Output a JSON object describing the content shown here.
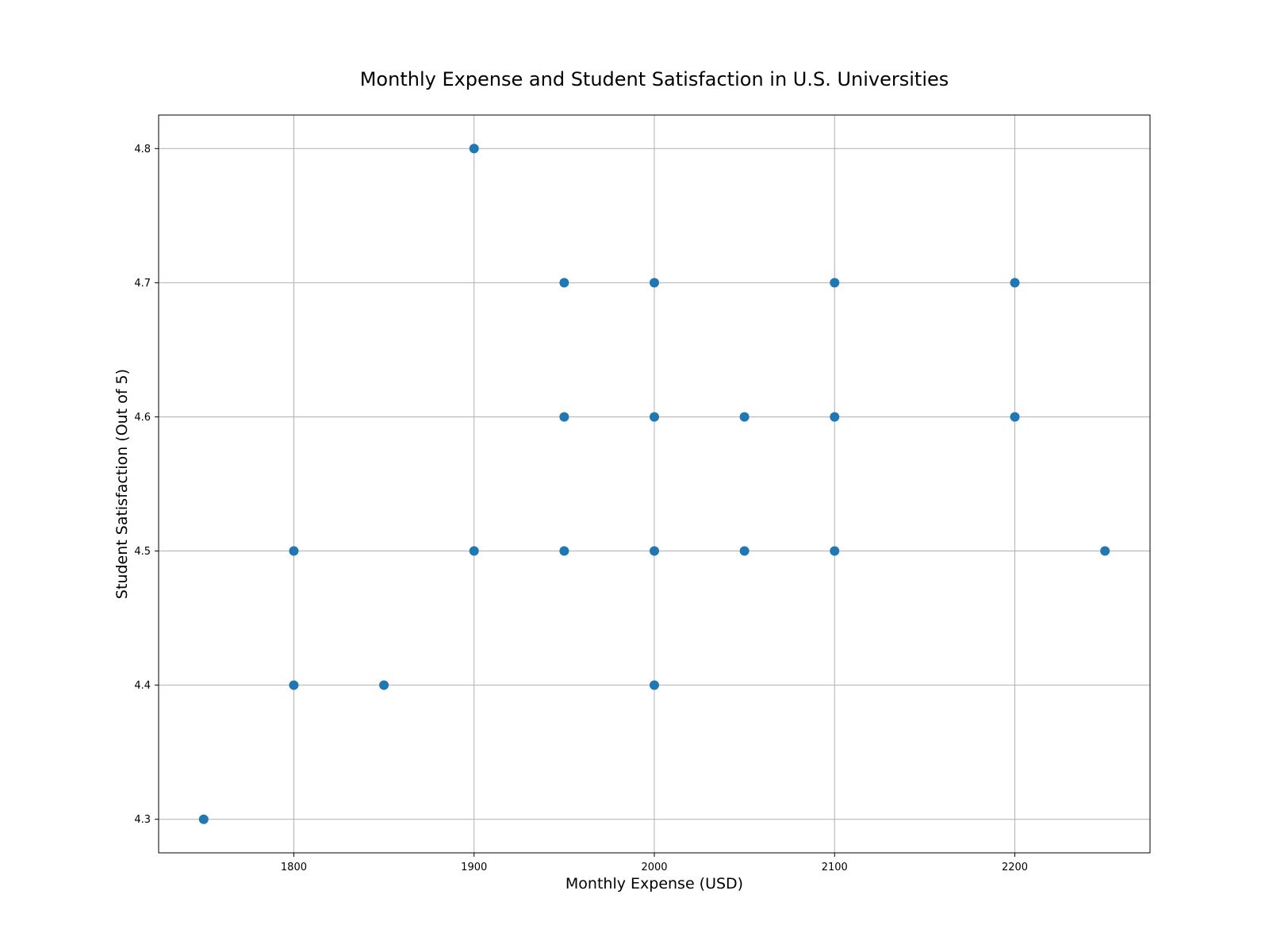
{
  "chart_data": {
    "type": "scatter",
    "title": "Monthly Expense and Student Satisfaction in U.S. Universities",
    "xlabel": "Monthly Expense (USD)",
    "ylabel": "Student Satisfaction (Out of 5)",
    "xlim": [
      1725,
      2275
    ],
    "ylim": [
      4.275,
      4.825
    ],
    "xticks": [
      1800,
      1900,
      2000,
      2100,
      2200
    ],
    "yticks": [
      4.3,
      4.4,
      4.5,
      4.6,
      4.7,
      4.8
    ],
    "xtick_labels": [
      "1800",
      "1900",
      "2000",
      "2100",
      "2200"
    ],
    "ytick_labels": [
      "4.3",
      "4.4",
      "4.5",
      "4.6",
      "4.7",
      "4.8"
    ],
    "grid": true,
    "marker_color": "#1f77b4",
    "points": [
      {
        "x": 1750,
        "y": 4.3
      },
      {
        "x": 1800,
        "y": 4.4
      },
      {
        "x": 1800,
        "y": 4.5
      },
      {
        "x": 1850,
        "y": 4.4
      },
      {
        "x": 1900,
        "y": 4.5
      },
      {
        "x": 1900,
        "y": 4.8
      },
      {
        "x": 1950,
        "y": 4.5
      },
      {
        "x": 1950,
        "y": 4.6
      },
      {
        "x": 1950,
        "y": 4.7
      },
      {
        "x": 2000,
        "y": 4.4
      },
      {
        "x": 2000,
        "y": 4.5
      },
      {
        "x": 2000,
        "y": 4.6
      },
      {
        "x": 2000,
        "y": 4.7
      },
      {
        "x": 2050,
        "y": 4.5
      },
      {
        "x": 2050,
        "y": 4.6
      },
      {
        "x": 2100,
        "y": 4.5
      },
      {
        "x": 2100,
        "y": 4.6
      },
      {
        "x": 2100,
        "y": 4.7
      },
      {
        "x": 2200,
        "y": 4.6
      },
      {
        "x": 2200,
        "y": 4.7
      },
      {
        "x": 2250,
        "y": 4.5
      }
    ]
  }
}
